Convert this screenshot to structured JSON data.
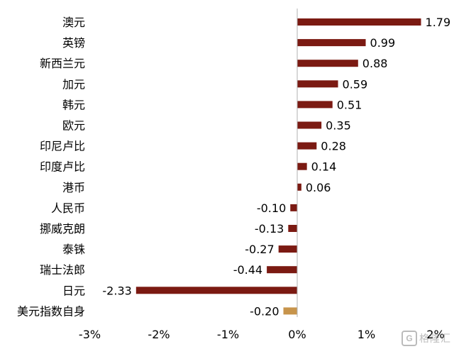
{
  "chart_data": {
    "type": "bar",
    "orientation": "horizontal",
    "categories": [
      "澳元",
      "英镑",
      "新西兰元",
      "加元",
      "韩元",
      "欧元",
      "印尼卢比",
      "印度卢比",
      "港币",
      "人民币",
      "挪威克朗",
      "泰铢",
      "瑞士法郎",
      "日元",
      "美元指数自身"
    ],
    "values": [
      1.79,
      0.99,
      0.88,
      0.59,
      0.51,
      0.35,
      0.28,
      0.14,
      0.06,
      -0.1,
      -0.13,
      -0.27,
      -0.44,
      -2.33,
      -0.2
    ],
    "value_labels": [
      "1.79",
      "0.99",
      "0.88",
      "0.59",
      "0.51",
      "0.35",
      "0.28",
      "0.14",
      "0.06",
      "-0.10",
      "-0.13",
      "-0.27",
      "-0.44",
      "-2.33",
      "-0.20"
    ],
    "xticks": [
      "-3%",
      "-2%",
      "-1%",
      "0%",
      "1%",
      "2%"
    ],
    "xlim": [
      -3,
      2
    ],
    "unit": "%",
    "colors": {
      "main": "#7b1a12",
      "highlight": "#c7944b",
      "axis": "#b0b0b0"
    },
    "highlight_index": 14,
    "title": "",
    "xlabel": "",
    "ylabel": "",
    "grid": false,
    "legend": "none"
  },
  "watermark": {
    "text": "格隆汇",
    "icon": "G"
  }
}
